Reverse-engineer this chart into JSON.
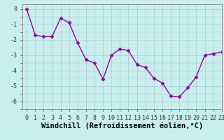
{
  "x": [
    0,
    1,
    2,
    3,
    4,
    5,
    6,
    7,
    8,
    9,
    10,
    11,
    12,
    13,
    14,
    15,
    16,
    17,
    18,
    19,
    20,
    21,
    22,
    23
  ],
  "y": [
    0.0,
    -1.7,
    -1.8,
    -1.8,
    -0.6,
    -0.9,
    -2.2,
    -3.3,
    -3.5,
    -4.55,
    -3.0,
    -2.6,
    -2.7,
    -3.6,
    -3.8,
    -4.5,
    -4.8,
    -5.65,
    -5.7,
    -5.1,
    -4.4,
    -3.0,
    -2.9,
    -2.8
  ],
  "line_color": "#990099",
  "marker": "D",
  "markersize": 2.5,
  "linewidth": 1.0,
  "bg_color": "#c8eeee",
  "grid_color": "#aacccc",
  "xlabel": "Windchill (Refroidissement éolien,°C)",
  "xlim": [
    -0.5,
    23
  ],
  "ylim": [
    -6.5,
    0.3
  ],
  "yticks": [
    0,
    -1,
    -2,
    -3,
    -4,
    -5,
    -6
  ],
  "xlabel_fontsize": 7.5,
  "tick_fontsize": 6.0
}
